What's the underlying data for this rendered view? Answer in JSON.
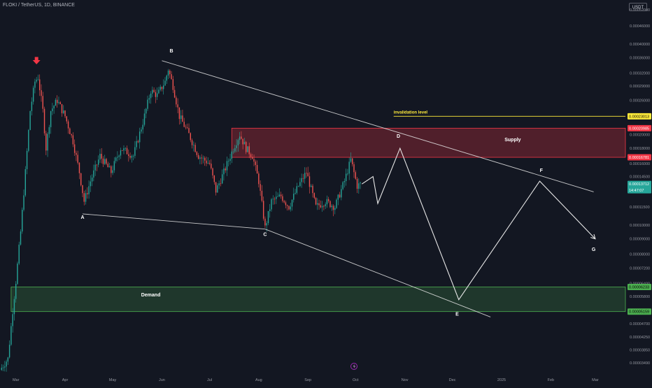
{
  "header": {
    "symbol": "FLOKI / TetherUS, 1D, BINANCE",
    "currency": "USDT"
  },
  "colors": {
    "background": "#131722",
    "bullish": "#26a69a",
    "bearish": "#ef5350",
    "supply_zone": "#f23645",
    "demand_zone": "#4caf50",
    "invalidation": "#ffeb3b",
    "arrow_marker": "#f23645",
    "drawing": "#e8e8e8"
  },
  "chart_data": {
    "type": "candlestick",
    "x_axis": {
      "range": [
        "2024-02-20",
        "2025-03-20"
      ],
      "tick_labels": [
        {
          "label": "Mar",
          "date": "2024-03-01"
        },
        {
          "label": "Apr",
          "date": "2024-04-01"
        },
        {
          "label": "May",
          "date": "2024-05-01"
        },
        {
          "label": "Jun",
          "date": "2024-06-01"
        },
        {
          "label": "Jul",
          "date": "2024-07-01"
        },
        {
          "label": "Aug",
          "date": "2024-08-01"
        },
        {
          "label": "Sep",
          "date": "2024-09-01"
        },
        {
          "label": "Oct",
          "date": "2024-10-01"
        },
        {
          "label": "Nov",
          "date": "2024-11-01"
        },
        {
          "label": "Dec",
          "date": "2024-12-01"
        },
        {
          "label": "2025",
          "date": "2025-01-01"
        },
        {
          "label": "Feb",
          "date": "2025-02-01"
        },
        {
          "label": "Mar",
          "date": "2025-03-01"
        }
      ]
    },
    "y_axis": {
      "scale": "log",
      "range": [
        3.2e-06,
        5.6e-05
      ],
      "tick_labels": [
        {
          "label": "0.00052000",
          "value": 5.2e-05
        },
        {
          "label": "0.00046000",
          "value": 4.6e-05
        },
        {
          "label": "0.00040000",
          "value": 4e-05
        },
        {
          "label": "0.00036000",
          "value": 3.6e-05
        },
        {
          "label": "0.00032000",
          "value": 3.2e-05
        },
        {
          "label": "0.00029000",
          "value": 2.9e-05
        },
        {
          "label": "0.00026000",
          "value": 2.6e-05
        },
        {
          "label": "0.00020000",
          "value": 2e-05
        },
        {
          "label": "0.00018000",
          "value": 1.8e-05
        },
        {
          "label": "0.00016000",
          "value": 1.6e-05
        },
        {
          "label": "0.00014500",
          "value": 1.45e-05
        },
        {
          "label": "0.00011500",
          "value": 1.15e-05
        },
        {
          "label": "0.00010000",
          "value": 1e-05
        },
        {
          "label": "0.00009000",
          "value": 9e-06
        },
        {
          "label": "0.00008000",
          "value": 8e-06
        },
        {
          "label": "0.00007200",
          "value": 7.2e-06
        },
        {
          "label": "0.00006400",
          "value": 6.4e-06
        },
        {
          "label": "0.00005800",
          "value": 5.8e-06
        },
        {
          "label": "0.00004700",
          "value": 4.7e-06
        },
        {
          "label": "0.00004250",
          "value": 4.25e-06
        },
        {
          "label": "0.00003850",
          "value": 3.85e-06
        },
        {
          "label": "0.00003490",
          "value": 3.49e-06
        }
      ],
      "price_tags": [
        {
          "label": "0.00023013",
          "value": 2.3e-05,
          "kind": "invalidation"
        },
        {
          "label": "0.00020985",
          "value": 2.1e-05,
          "kind": "supply"
        },
        {
          "label": "0.00016781",
          "value": 1.68e-05,
          "kind": "supply"
        },
        {
          "label": "0.00013712",
          "value": 1.37e-05,
          "kind": "last",
          "sub": "14:47:07"
        },
        {
          "label": "0.00006233",
          "value": 6.23e-06,
          "kind": "demand"
        },
        {
          "label": "0.00005159",
          "value": 5.16e-06,
          "kind": "demand"
        }
      ]
    },
    "path_points": [
      {
        "date": "2024-02-20",
        "price": 3.3e-06
      },
      {
        "date": "2024-02-25",
        "price": 3.6e-06
      },
      {
        "date": "2024-02-28",
        "price": 5.2e-06
      },
      {
        "date": "2024-03-01",
        "price": 6.5e-06
      },
      {
        "date": "2024-03-04",
        "price": 9.5e-06
      },
      {
        "date": "2024-03-07",
        "price": 1.5e-05
      },
      {
        "date": "2024-03-10",
        "price": 2.4e-05
      },
      {
        "date": "2024-03-13",
        "price": 3e-05
      },
      {
        "date": "2024-03-15",
        "price": 3.1e-05
      },
      {
        "date": "2024-03-18",
        "price": 2.4e-05
      },
      {
        "date": "2024-03-20",
        "price": 1.8e-05
      },
      {
        "date": "2024-03-23",
        "price": 2.4e-05
      },
      {
        "date": "2024-03-27",
        "price": 2.6e-05
      },
      {
        "date": "2024-04-01",
        "price": 2.3e-05
      },
      {
        "date": "2024-04-06",
        "price": 1.9e-05
      },
      {
        "date": "2024-04-10",
        "price": 1.5e-05
      },
      {
        "date": "2024-04-13",
        "price": 1.2e-05
      },
      {
        "date": "2024-04-17",
        "price": 1.4e-05
      },
      {
        "date": "2024-04-23",
        "price": 1.7e-05
      },
      {
        "date": "2024-04-30",
        "price": 1.5e-05
      },
      {
        "date": "2024-05-06",
        "price": 1.8e-05
      },
      {
        "date": "2024-05-14",
        "price": 1.7e-05
      },
      {
        "date": "2024-05-20",
        "price": 2.2e-05
      },
      {
        "date": "2024-05-25",
        "price": 2.8e-05
      },
      {
        "date": "2024-05-29",
        "price": 2.7e-05
      },
      {
        "date": "2024-06-03",
        "price": 3e-05
      },
      {
        "date": "2024-06-05",
        "price": 3.3e-05
      },
      {
        "date": "2024-06-08",
        "price": 2.9e-05
      },
      {
        "date": "2024-06-12",
        "price": 2.3e-05
      },
      {
        "date": "2024-06-18",
        "price": 2e-05
      },
      {
        "date": "2024-06-24",
        "price": 1.7e-05
      },
      {
        "date": "2024-07-01",
        "price": 1.6e-05
      },
      {
        "date": "2024-07-05",
        "price": 1.3e-05
      },
      {
        "date": "2024-07-10",
        "price": 1.5e-05
      },
      {
        "date": "2024-07-16",
        "price": 1.8e-05
      },
      {
        "date": "2024-07-20",
        "price": 2e-05
      },
      {
        "date": "2024-07-24",
        "price": 1.8e-05
      },
      {
        "date": "2024-07-28",
        "price": 1.7e-05
      },
      {
        "date": "2024-08-01",
        "price": 1.4e-05
      },
      {
        "date": "2024-08-05",
        "price": 9.8e-06
      },
      {
        "date": "2024-08-09",
        "price": 1.2e-05
      },
      {
        "date": "2024-08-15",
        "price": 1.25e-05
      },
      {
        "date": "2024-08-20",
        "price": 1.15e-05
      },
      {
        "date": "2024-08-26",
        "price": 1.35e-05
      },
      {
        "date": "2024-08-31",
        "price": 1.5e-05
      },
      {
        "date": "2024-09-06",
        "price": 1.15e-05
      },
      {
        "date": "2024-09-12",
        "price": 1.2e-05
      },
      {
        "date": "2024-09-18",
        "price": 1.15e-05
      },
      {
        "date": "2024-09-24",
        "price": 1.4e-05
      },
      {
        "date": "2024-09-28",
        "price": 1.65e-05
      },
      {
        "date": "2024-10-02",
        "price": 1.35e-05
      },
      {
        "date": "2024-10-04",
        "price": 1.37e-05
      }
    ],
    "zones": [
      {
        "name": "Supply",
        "from_date": "2024-07-15",
        "to_date": "2025-03-20",
        "low": 1.68e-05,
        "high": 2.1e-05
      },
      {
        "name": "Demand",
        "from_date": "2024-02-27",
        "to_date": "2025-03-20",
        "low": 5.16e-06,
        "high": 6.23e-06
      }
    ],
    "horizontal_lines": [
      {
        "label": "invalidation level",
        "value": 2.3e-05,
        "from_date": "2024-10-25"
      }
    ],
    "trend_lines": [
      {
        "from": {
          "date": "2024-06-01",
          "price": 3.52e-05
        },
        "to": {
          "date": "2025-02-28",
          "price": 1.29e-05
        }
      },
      {
        "from": {
          "date": "2024-04-12",
          "price": 1.09e-05
        },
        "to": {
          "date": "2024-08-05",
          "price": 9.7e-06
        }
      },
      {
        "from": {
          "date": "2024-08-05",
          "price": 9.7e-06
        },
        "to": {
          "date": "2024-12-25",
          "price": 4.95e-06
        }
      }
    ],
    "projection_path": [
      {
        "date": "2024-10-05",
        "price": 1.37e-05
      },
      {
        "date": "2024-10-12",
        "price": 1.45e-05
      },
      {
        "date": "2024-10-15",
        "price": 1.18e-05
      },
      {
        "date": "2024-10-29",
        "price": 1.8e-05
      },
      {
        "date": "2024-12-05",
        "price": 5.65e-06
      },
      {
        "date": "2025-01-25",
        "price": 1.4e-05
      },
      {
        "date": "2025-03-01",
        "price": 9e-06
      }
    ],
    "wave_labels": [
      {
        "text": "A",
        "date": "2024-04-12",
        "price": 1.05e-05
      },
      {
        "text": "B",
        "date": "2024-06-07",
        "price": 3.75e-05
      },
      {
        "text": "C",
        "date": "2024-08-05",
        "price": 9.2e-06
      },
      {
        "text": "D",
        "date": "2024-10-28",
        "price": 1.95e-05
      },
      {
        "text": "E",
        "date": "2024-12-04",
        "price": 5e-06
      },
      {
        "text": "F",
        "date": "2025-01-26",
        "price": 1.5e-05
      },
      {
        "text": "G",
        "date": "2025-02-28",
        "price": 8.2e-06
      }
    ],
    "annotations": [
      {
        "text": "invalidation level",
        "date": "2024-10-25",
        "price": 2.35e-05
      },
      {
        "text": "Supply",
        "date": "2025-01-08",
        "price": 1.9e-05
      },
      {
        "text": "Demand",
        "date": "2024-05-25",
        "price": 5.8e-06
      }
    ],
    "marker": {
      "kind": "down-arrow",
      "date": "2024-03-14",
      "price": 3.45e-05
    }
  }
}
